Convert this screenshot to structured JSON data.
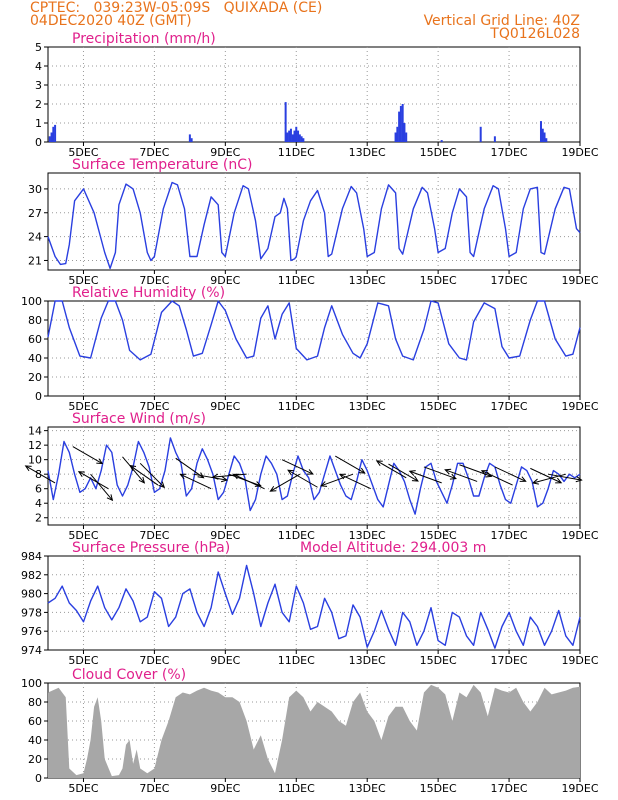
{
  "header": {
    "line1": "CPTEC:   039:23W-05:09S   QUIXADA (CE)",
    "line2": "04DEC2020 40Z (GMT)",
    "grid_note": "Vertical Grid Line: 40Z",
    "code": "TQ0126L028"
  },
  "colors": {
    "header": "#e8731c",
    "title": "#e0208c",
    "line": "#2a3fe0",
    "cloud": "#a7a7a7",
    "grid": "#9a9a9a"
  },
  "x_axis": {
    "range_days": [
      4.0,
      19.0
    ],
    "ticks": [
      {
        "day": 5,
        "label": "5DEC"
      },
      {
        "day": 7,
        "label": "7DEC"
      },
      {
        "day": 9,
        "label": "9DEC"
      },
      {
        "day": 11,
        "label": "11DEC"
      },
      {
        "day": 13,
        "label": "13DEC"
      },
      {
        "day": 15,
        "label": "15DEC"
      },
      {
        "day": 17,
        "label": "17DEC"
      },
      {
        "day": 19,
        "label": "19DEC"
      }
    ]
  },
  "chart_data": [
    {
      "id": "precip",
      "type": "bar",
      "title": "Precipitation (mm/h)",
      "ylim": [
        0,
        5
      ],
      "yticks": [
        "0",
        "1",
        "2",
        "3",
        "4",
        "5"
      ],
      "x": [
        4.05,
        4.1,
        4.15,
        4.2,
        8.0,
        8.05,
        10.7,
        10.75,
        10.8,
        10.85,
        10.9,
        10.95,
        11.0,
        11.05,
        11.1,
        11.15,
        11.2,
        13.8,
        13.85,
        13.9,
        13.95,
        14.0,
        14.05,
        14.1,
        15.1,
        16.2,
        16.6,
        17.9,
        17.95,
        18.0,
        18.05
      ],
      "values": [
        0.3,
        0.5,
        0.8,
        0.9,
        0.4,
        0.2,
        2.1,
        0.5,
        0.6,
        0.7,
        0.4,
        0.6,
        0.8,
        0.6,
        0.4,
        0.3,
        0.2,
        0.5,
        0.8,
        1.6,
        1.9,
        2.0,
        1.0,
        0.5,
        0.1,
        0.8,
        0.3,
        1.1,
        0.7,
        0.5,
        0.2
      ]
    },
    {
      "id": "temp",
      "type": "line",
      "title": "Surface Temperature (nC)",
      "ylim": [
        19.8,
        32
      ],
      "yticks": [
        "21",
        "24",
        "27",
        "30"
      ],
      "x": [
        4.0,
        4.2,
        4.35,
        4.5,
        4.6,
        4.75,
        5.0,
        5.3,
        5.6,
        5.75,
        5.9,
        6.0,
        6.2,
        6.4,
        6.6,
        6.8,
        6.9,
        7.0,
        7.25,
        7.5,
        7.65,
        7.85,
        8.0,
        8.2,
        8.4,
        8.6,
        8.8,
        8.9,
        9.0,
        9.25,
        9.5,
        9.65,
        9.85,
        10.0,
        10.2,
        10.4,
        10.55,
        10.65,
        10.75,
        10.85,
        10.95,
        11.0,
        11.2,
        11.4,
        11.6,
        11.8,
        11.9,
        12.0,
        12.3,
        12.55,
        12.7,
        12.9,
        13.0,
        13.2,
        13.4,
        13.6,
        13.8,
        13.9,
        14.0,
        14.3,
        14.55,
        14.7,
        14.9,
        15.0,
        15.2,
        15.4,
        15.6,
        15.8,
        15.9,
        16.0,
        16.3,
        16.55,
        16.7,
        16.9,
        17.0,
        17.2,
        17.4,
        17.6,
        17.8,
        17.9,
        18.0,
        18.3,
        18.55,
        18.7,
        18.9,
        19.0
      ],
      "values": [
        24.0,
        21.5,
        20.5,
        20.6,
        23.0,
        28.5,
        30.0,
        27.0,
        22.0,
        20.0,
        22.0,
        28.0,
        30.6,
        30.0,
        27.0,
        22.0,
        21.0,
        21.5,
        27.5,
        30.8,
        30.5,
        27.5,
        21.5,
        21.5,
        25.5,
        29.0,
        28.0,
        22.0,
        21.5,
        27.0,
        30.4,
        30.0,
        26.0,
        21.2,
        22.5,
        26.5,
        27.0,
        28.8,
        27.5,
        21.0,
        21.2,
        21.5,
        26.0,
        28.5,
        29.8,
        27.0,
        21.5,
        21.8,
        27.5,
        30.3,
        29.5,
        25.0,
        21.5,
        22.0,
        27.5,
        30.5,
        29.5,
        22.5,
        21.8,
        27.5,
        30.2,
        29.5,
        25.0,
        22.0,
        22.5,
        27.0,
        30.0,
        29.0,
        22.0,
        21.5,
        27.5,
        30.4,
        30.0,
        25.0,
        21.5,
        22.0,
        27.5,
        30.0,
        30.2,
        22.0,
        21.8,
        27.5,
        30.2,
        30.0,
        25.0,
        24.5
      ]
    },
    {
      "id": "rh",
      "type": "line",
      "title": "Relative Humidity (%)",
      "ylim": [
        0,
        100
      ],
      "yticks": [
        "0",
        "20",
        "40",
        "60",
        "80",
        "100"
      ],
      "x": [
        4.0,
        4.2,
        4.4,
        4.6,
        4.9,
        5.2,
        5.5,
        5.7,
        5.9,
        6.1,
        6.3,
        6.6,
        6.9,
        7.2,
        7.5,
        7.7,
        7.9,
        8.1,
        8.35,
        8.6,
        8.8,
        9.0,
        9.3,
        9.6,
        9.8,
        10.0,
        10.2,
        10.4,
        10.6,
        10.8,
        11.0,
        11.3,
        11.6,
        11.8,
        12.0,
        12.3,
        12.6,
        12.8,
        13.0,
        13.3,
        13.6,
        13.8,
        14.0,
        14.3,
        14.6,
        14.8,
        15.0,
        15.3,
        15.6,
        15.8,
        16.0,
        16.3,
        16.6,
        16.8,
        17.0,
        17.3,
        17.6,
        17.8,
        18.0,
        18.3,
        18.6,
        18.8,
        19.0
      ],
      "values": [
        62,
        100,
        100,
        72,
        42,
        40,
        82,
        100,
        100,
        80,
        48,
        38,
        44,
        88,
        100,
        95,
        70,
        42,
        45,
        75,
        100,
        90,
        60,
        40,
        42,
        82,
        95,
        60,
        86,
        98,
        50,
        38,
        42,
        72,
        95,
        65,
        45,
        40,
        55,
        98,
        95,
        60,
        42,
        38,
        70,
        100,
        98,
        55,
        40,
        38,
        78,
        98,
        92,
        52,
        40,
        42,
        80,
        100,
        100,
        60,
        42,
        44,
        72
      ]
    },
    {
      "id": "wind",
      "type": "line",
      "title": "Surface Wind (m/s)",
      "ylim": [
        1,
        14.5
      ],
      "yticks": [
        "2",
        "4",
        "6",
        "8",
        "10",
        "12",
        "14"
      ],
      "x": [
        4.0,
        4.15,
        4.3,
        4.45,
        4.6,
        4.75,
        4.9,
        5.05,
        5.2,
        5.35,
        5.5,
        5.65,
        5.8,
        5.95,
        6.1,
        6.25,
        6.4,
        6.55,
        6.7,
        6.85,
        7.0,
        7.15,
        7.3,
        7.45,
        7.6,
        7.75,
        7.9,
        8.05,
        8.2,
        8.35,
        8.5,
        8.65,
        8.8,
        8.95,
        9.1,
        9.25,
        9.4,
        9.55,
        9.7,
        9.85,
        10.0,
        10.15,
        10.3,
        10.45,
        10.6,
        10.75,
        10.9,
        11.05,
        11.2,
        11.35,
        11.5,
        11.65,
        11.8,
        11.95,
        12.1,
        12.25,
        12.4,
        12.55,
        12.7,
        12.85,
        13.0,
        13.15,
        13.3,
        13.45,
        13.6,
        13.75,
        13.9,
        14.05,
        14.2,
        14.35,
        14.5,
        14.65,
        14.8,
        14.95,
        15.1,
        15.25,
        15.4,
        15.55,
        15.7,
        15.85,
        16.0,
        16.15,
        16.3,
        16.45,
        16.6,
        16.75,
        16.9,
        17.05,
        17.2,
        17.35,
        17.5,
        17.65,
        17.8,
        17.95,
        18.1,
        18.25,
        18.4,
        18.55,
        18.7,
        18.85,
        19.0
      ],
      "values": [
        8.5,
        4.5,
        8.0,
        12.5,
        11.0,
        8.0,
        5.5,
        6.0,
        7.5,
        6.0,
        8.5,
        12.0,
        11.0,
        6.5,
        5.0,
        6.5,
        9.0,
        12.5,
        11.0,
        9.0,
        5.5,
        6.0,
        8.5,
        13.0,
        11.0,
        9.5,
        5.0,
        6.0,
        9.5,
        11.5,
        10.0,
        8.0,
        4.5,
        5.5,
        8.0,
        10.5,
        9.5,
        7.5,
        3.0,
        4.5,
        8.0,
        10.5,
        9.5,
        8.0,
        4.5,
        5.0,
        8.0,
        10.5,
        8.5,
        7.5,
        4.5,
        5.5,
        8.0,
        10.5,
        8.5,
        6.5,
        5.0,
        4.5,
        7.0,
        10.0,
        8.5,
        6.5,
        4.5,
        3.5,
        6.5,
        9.5,
        8.5,
        7.0,
        4.5,
        2.5,
        6.0,
        9.0,
        9.5,
        7.0,
        5.5,
        4.0,
        6.5,
        9.5,
        9.5,
        7.5,
        5.0,
        5.0,
        7.5,
        9.5,
        9.0,
        6.5,
        4.5,
        4.0,
        6.5,
        9.0,
        8.5,
        7.0,
        3.5,
        4.0,
        6.0,
        8.5,
        8.0,
        7.0,
        8.0,
        7.5,
        8.0
      ],
      "arrows": [
        {
          "day": 4.2,
          "speed": 6.8,
          "dir_deg": 300
        },
        {
          "day": 4.7,
          "speed": 11.8,
          "dir_deg": 120
        },
        {
          "day": 5.2,
          "speed": 8.0,
          "dir_deg": 140
        },
        {
          "day": 5.7,
          "speed": 6.0,
          "dir_deg": 300
        },
        {
          "day": 6.1,
          "speed": 10.4,
          "dir_deg": 140
        },
        {
          "day": 6.6,
          "speed": 9.5,
          "dir_deg": 135
        },
        {
          "day": 7.1,
          "speed": 6.5,
          "dir_deg": 305
        },
        {
          "day": 7.6,
          "speed": 10.2,
          "dir_deg": 125
        },
        {
          "day": 8.1,
          "speed": 8.0,
          "dir_deg": 100
        },
        {
          "day": 8.6,
          "speed": 6.0,
          "dir_deg": 295
        },
        {
          "day": 9.1,
          "speed": 8.0,
          "dir_deg": 110
        },
        {
          "day": 9.6,
          "speed": 8.0,
          "dir_deg": 265
        },
        {
          "day": 10.1,
          "speed": 6.0,
          "dir_deg": 295
        },
        {
          "day": 10.6,
          "speed": 10.0,
          "dir_deg": 115
        },
        {
          "day": 11.1,
          "speed": 8.0,
          "dir_deg": 240
        },
        {
          "day": 11.6,
          "speed": 6.2,
          "dir_deg": 300
        },
        {
          "day": 12.1,
          "speed": 10.5,
          "dir_deg": 120
        },
        {
          "day": 12.6,
          "speed": 8.0,
          "dir_deg": 250
        },
        {
          "day": 13.1,
          "speed": 6.0,
          "dir_deg": 295
        },
        {
          "day": 13.6,
          "speed": 9.4,
          "dir_deg": 120
        },
        {
          "day": 14.1,
          "speed": 7.5,
          "dir_deg": 300
        },
        {
          "day": 14.6,
          "speed": 9.0,
          "dir_deg": 110
        },
        {
          "day": 15.1,
          "speed": 6.8,
          "dir_deg": 290
        },
        {
          "day": 15.6,
          "speed": 9.3,
          "dir_deg": 110
        },
        {
          "day": 16.1,
          "speed": 7.0,
          "dir_deg": 290
        },
        {
          "day": 16.6,
          "speed": 9.0,
          "dir_deg": 115
        },
        {
          "day": 17.1,
          "speed": 6.5,
          "dir_deg": 295
        },
        {
          "day": 17.6,
          "speed": 8.8,
          "dir_deg": 115
        },
        {
          "day": 18.1,
          "speed": 8.0,
          "dir_deg": 100
        },
        {
          "day": 18.6,
          "speed": 8.0,
          "dir_deg": 255
        }
      ]
    },
    {
      "id": "pres",
      "type": "line",
      "title": "Surface Pressure (hPa)",
      "subtitle": "Model Altitude: 294.003 m",
      "ylim": [
        974,
        984
      ],
      "yticks": [
        "974",
        "976",
        "978",
        "980",
        "982",
        "984"
      ],
      "x": [
        4.0,
        4.2,
        4.4,
        4.6,
        4.8,
        5.0,
        5.2,
        5.4,
        5.6,
        5.8,
        6.0,
        6.2,
        6.4,
        6.6,
        6.8,
        7.0,
        7.2,
        7.4,
        7.6,
        7.8,
        8.0,
        8.2,
        8.4,
        8.6,
        8.8,
        9.0,
        9.2,
        9.4,
        9.6,
        9.8,
        10.0,
        10.2,
        10.4,
        10.6,
        10.8,
        11.0,
        11.2,
        11.4,
        11.6,
        11.8,
        12.0,
        12.2,
        12.4,
        12.6,
        12.8,
        13.0,
        13.2,
        13.4,
        13.6,
        13.8,
        14.0,
        14.2,
        14.4,
        14.6,
        14.8,
        15.0,
        15.2,
        15.4,
        15.6,
        15.8,
        16.0,
        16.2,
        16.4,
        16.6,
        16.8,
        17.0,
        17.2,
        17.4,
        17.6,
        17.8,
        18.0,
        18.2,
        18.4,
        18.6,
        18.8,
        19.0
      ],
      "values": [
        979.0,
        979.5,
        980.8,
        979.0,
        978.2,
        977.0,
        979.2,
        980.8,
        978.5,
        977.2,
        978.5,
        980.5,
        979.2,
        977.0,
        977.5,
        980.2,
        979.5,
        976.5,
        977.5,
        980.0,
        980.5,
        978.0,
        976.5,
        978.5,
        982.3,
        980.0,
        977.8,
        979.5,
        983.0,
        980.0,
        976.5,
        979.0,
        981.0,
        978.0,
        977.0,
        980.8,
        979.0,
        976.2,
        976.5,
        979.5,
        978.0,
        975.2,
        975.5,
        978.8,
        977.5,
        974.3,
        976.0,
        978.2,
        976.2,
        974.5,
        978.0,
        977.0,
        974.5,
        976.0,
        978.5,
        975.0,
        974.5,
        978.0,
        977.5,
        975.5,
        974.5,
        978.0,
        976.2,
        974.2,
        976.5,
        978.0,
        976.0,
        974.5,
        977.5,
        976.5,
        974.5,
        976.0,
        978.2,
        975.5,
        974.5,
        977.5
      ]
    },
    {
      "id": "cloud",
      "type": "area",
      "title": "Cloud Cover (%)",
      "ylim": [
        0,
        100
      ],
      "yticks": [
        "0",
        "20",
        "40",
        "60",
        "80",
        "100"
      ],
      "x": [
        4.0,
        4.3,
        4.5,
        4.6,
        4.8,
        5.0,
        5.1,
        5.2,
        5.3,
        5.4,
        5.5,
        5.6,
        5.8,
        6.0,
        6.1,
        6.2,
        6.3,
        6.4,
        6.5,
        6.6,
        6.8,
        7.0,
        7.2,
        7.4,
        7.6,
        7.8,
        8.0,
        8.2,
        8.4,
        8.6,
        8.8,
        9.0,
        9.2,
        9.4,
        9.6,
        9.8,
        10.0,
        10.2,
        10.4,
        10.6,
        10.8,
        11.0,
        11.2,
        11.4,
        11.6,
        11.8,
        12.0,
        12.2,
        12.4,
        12.6,
        12.8,
        13.0,
        13.2,
        13.4,
        13.6,
        13.8,
        14.0,
        14.2,
        14.4,
        14.6,
        14.8,
        15.0,
        15.2,
        15.4,
        15.6,
        15.8,
        16.0,
        16.2,
        16.4,
        16.6,
        16.8,
        17.0,
        17.2,
        17.4,
        17.6,
        17.8,
        18.0,
        18.2,
        18.4,
        18.6,
        18.8,
        19.0
      ],
      "values": [
        90,
        95,
        85,
        10,
        3,
        5,
        20,
        40,
        75,
        85,
        60,
        20,
        2,
        3,
        10,
        35,
        40,
        15,
        30,
        10,
        5,
        10,
        40,
        60,
        85,
        90,
        88,
        92,
        95,
        92,
        90,
        85,
        85,
        80,
        60,
        30,
        45,
        20,
        5,
        40,
        85,
        92,
        85,
        70,
        80,
        75,
        70,
        60,
        55,
        80,
        90,
        70,
        60,
        40,
        65,
        75,
        75,
        60,
        50,
        90,
        98,
        95,
        88,
        60,
        90,
        85,
        98,
        90,
        65,
        95,
        92,
        90,
        95,
        80,
        70,
        80,
        95,
        88,
        90,
        92,
        95,
        96
      ]
    }
  ]
}
